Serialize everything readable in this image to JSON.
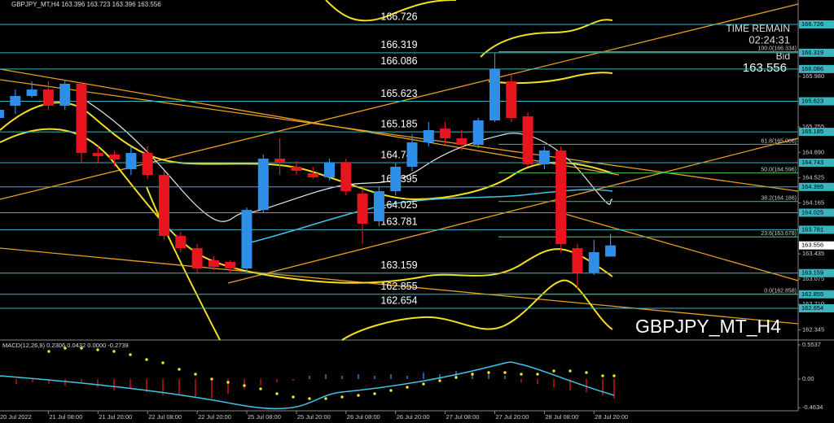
{
  "header": {
    "symbol_ohlc": "GBPJPY_MT,H4  163.396 163.723 163.396 163.556"
  },
  "chart_data": {
    "type": "candlestick",
    "categories": [
      "20 Jul 2022",
      null,
      null,
      "21 Jul 08:00",
      null,
      null,
      "21 Jul 20:00",
      null,
      null,
      "22 Jul 08:00",
      null,
      null,
      "22 Jul 20:00",
      null,
      null,
      "25 Jul 08:00",
      null,
      null,
      "25 Jul 20:00",
      null,
      null,
      "26 Jul 08:00",
      null,
      null,
      "26 Jul 20:00",
      null,
      null,
      "27 Jul 08:00",
      null,
      null,
      "27 Jul 20:00",
      null,
      null,
      "28 Jul 08:00",
      null,
      null,
      "28 Jul 20:00",
      null
    ],
    "open": [
      165.384,
      165.559,
      165.699,
      165.792,
      165.559,
      165.874,
      164.882,
      164.859,
      164.649,
      164.882,
      164.567,
      163.692,
      163.517,
      163.342,
      163.319,
      163.225,
      164.065,
      164.801,
      164.684,
      164.591,
      164.532,
      164.742,
      164.299,
      163.902,
      164.334,
      164.684,
      165.034,
      165.232,
      165.092,
      164.999,
      165.349,
      165.909,
      165.407,
      164.719,
      164.917,
      163.517,
      163.167,
      163.396
    ],
    "high": [
      165.559,
      165.792,
      165.909,
      165.909,
      165.932,
      165.909,
      164.976,
      164.917,
      164.976,
      164.976,
      164.626,
      163.75,
      163.575,
      163.4,
      163.342,
      164.1,
      164.859,
      165.092,
      164.766,
      164.684,
      164.801,
      164.801,
      164.369,
      164.392,
      164.742,
      165.151,
      165.326,
      165.326,
      165.209,
      165.384,
      166.318,
      166.026,
      165.466,
      164.976,
      164.976,
      163.575,
      163.634,
      163.723
    ],
    "low": [
      165.326,
      165.442,
      165.676,
      165.501,
      165.501,
      164.742,
      164.742,
      164.684,
      164.567,
      164.509,
      163.634,
      163.459,
      163.167,
      163.202,
      163.167,
      163.167,
      164.019,
      164.567,
      164.567,
      164.509,
      164.486,
      164.275,
      163.575,
      163.832,
      164.275,
      164.626,
      164.976,
      164.999,
      164.917,
      164.952,
      165.326,
      165.326,
      164.684,
      164.649,
      163.459,
      162.934,
      163.132,
      163.396
    ],
    "close": [
      165.501,
      165.699,
      165.792,
      165.559,
      165.874,
      164.882,
      164.836,
      164.789,
      164.882,
      164.567,
      163.692,
      163.517,
      163.225,
      163.249,
      163.225,
      164.065,
      164.801,
      164.742,
      164.626,
      164.532,
      164.742,
      164.334,
      163.867,
      164.334,
      164.684,
      165.034,
      165.209,
      165.092,
      164.999,
      165.349,
      166.084,
      165.384,
      164.719,
      164.917,
      163.575,
      163.167,
      163.459,
      163.556
    ],
    "up_color": "#2f8fe8",
    "down_color": "#e8141e",
    "ylim": [
      162.199,
      167.076
    ],
    "yticks": [
      {
        "value": 165.98,
        "label": "165.980"
      },
      165.255,
      {
        "value": 164.89,
        "label": "164.890"
      },
      164.525,
      164.165,
      163.435,
      163.075,
      {
        "value": 162.71,
        "label": "162.710"
      },
      162.345
    ],
    "levels": [
      166.726,
      166.319,
      166.086,
      165.623,
      165.185,
      164.743,
      164.395,
      164.025,
      163.781,
      163.159,
      162.855,
      162.654
    ],
    "level_color": "#3ab5c0",
    "fib_levels": [
      {
        "value": 166.334,
        "label": "100.0(166.334)"
      },
      {
        "value": 165.006,
        "label": "61.8(165.006)"
      },
      {
        "value": 164.596,
        "label": "50.0(164.596)"
      },
      {
        "value": 164.186,
        "label": "38.2(164.186)"
      },
      {
        "value": 163.678,
        "label": "23.6(163.678)"
      },
      {
        "value": 162.858,
        "label": "0.0(162.858)"
      }
    ],
    "fib_color": "#3cb043",
    "time_remain_label": "TIME REMAIN",
    "time_remain": "02:24:31",
    "bid_label": "Bid",
    "bid": 163.556,
    "watermark": "GBPJPY_MT_H4"
  },
  "macd": {
    "label": "MACD(12,26,9) 0.2306 0.0432 0.0000 -0.2739",
    "ylim": [
      -0.513,
      0.619
    ],
    "yticks": [
      0.5537,
      {
        "value": 0,
        "label": "0.00"
      },
      -0.4634
    ]
  }
}
